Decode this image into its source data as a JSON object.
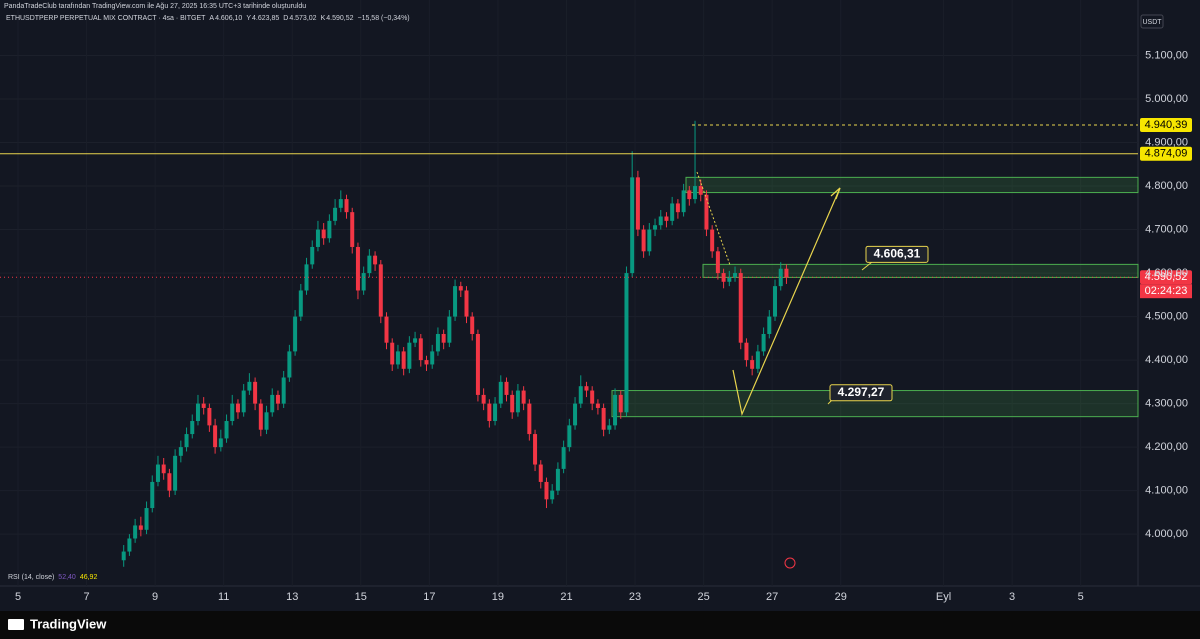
{
  "header": {
    "attribution": "PandaTradeClub tarafından TradingView.com ile Ağu 27, 2025 16:35 UTC+3 tarihinde oluşturuldu",
    "symbol": "ETHUSDTPERP PERPETUAL MIX CONTRACT · 4sa · BITGET",
    "ohlc": [
      {
        "key": "A",
        "value": "4.606,10"
      },
      {
        "key": "Y",
        "value": "4.623,85"
      },
      {
        "key": "D",
        "value": "4.573,02"
      },
      {
        "key": "K",
        "value": "4.590,52"
      }
    ],
    "change": "−15,58 (−0,34%)"
  },
  "chart_data": {
    "type": "candlestick",
    "currency": "USDT",
    "ylim": [
      3913,
      5200
    ],
    "yticks": [
      {
        "value": 4000,
        "label": "4.000,00"
      },
      {
        "value": 4100,
        "label": "4.100,00"
      },
      {
        "value": 4200,
        "label": "4.200,00"
      },
      {
        "value": 4300,
        "label": "4.300,00"
      },
      {
        "value": 4400,
        "label": "4.400,00"
      },
      {
        "value": 4500,
        "label": "4.500,00"
      },
      {
        "value": 4600,
        "label": "4.600,00"
      },
      {
        "value": 4700,
        "label": "4.700,00"
      },
      {
        "value": 4800,
        "label": "4.800,00"
      },
      {
        "value": 4900,
        "label": "4.900,00"
      },
      {
        "value": 5000,
        "label": "5.000,00"
      },
      {
        "value": 5100,
        "label": "5.100,00"
      }
    ],
    "x_labels": [
      "5",
      "7",
      "9",
      "11",
      "13",
      "15",
      "17",
      "19",
      "21",
      "23",
      "25",
      "27",
      "29",
      "Eyl",
      "3",
      "5"
    ],
    "candles": [
      [
        3940,
        3975,
        3925,
        3960
      ],
      [
        3960,
        4000,
        3950,
        3990
      ],
      [
        3990,
        4035,
        3980,
        4020
      ],
      [
        4020,
        4040,
        3995,
        4010
      ],
      [
        4010,
        4075,
        4000,
        4060
      ],
      [
        4060,
        4135,
        4050,
        4120
      ],
      [
        4120,
        4180,
        4110,
        4160
      ],
      [
        4160,
        4175,
        4125,
        4140
      ],
      [
        4140,
        4150,
        4085,
        4100
      ],
      [
        4100,
        4195,
        4090,
        4180
      ],
      [
        4180,
        4215,
        4165,
        4200
      ],
      [
        4200,
        4245,
        4190,
        4230
      ],
      [
        4230,
        4275,
        4220,
        4260
      ],
      [
        4260,
        4320,
        4250,
        4300
      ],
      [
        4300,
        4315,
        4275,
        4290
      ],
      [
        4290,
        4300,
        4235,
        4250
      ],
      [
        4250,
        4265,
        4185,
        4200
      ],
      [
        4200,
        4240,
        4190,
        4220
      ],
      [
        4220,
        4275,
        4210,
        4260
      ],
      [
        4260,
        4320,
        4250,
        4300
      ],
      [
        4300,
        4310,
        4265,
        4280
      ],
      [
        4280,
        4345,
        4270,
        4330
      ],
      [
        4330,
        4370,
        4320,
        4350
      ],
      [
        4350,
        4360,
        4285,
        4300
      ],
      [
        4300,
        4310,
        4225,
        4240
      ],
      [
        4240,
        4295,
        4230,
        4280
      ],
      [
        4280,
        4335,
        4270,
        4320
      ],
      [
        4320,
        4330,
        4285,
        4300
      ],
      [
        4300,
        4375,
        4290,
        4360
      ],
      [
        4360,
        4435,
        4350,
        4420
      ],
      [
        4420,
        4515,
        4410,
        4500
      ],
      [
        4500,
        4575,
        4490,
        4560
      ],
      [
        4560,
        4635,
        4550,
        4620
      ],
      [
        4620,
        4675,
        4610,
        4660
      ],
      [
        4660,
        4720,
        4650,
        4700
      ],
      [
        4700,
        4715,
        4665,
        4680
      ],
      [
        4680,
        4735,
        4670,
        4720
      ],
      [
        4720,
        4770,
        4710,
        4750
      ],
      [
        4750,
        4790,
        4740,
        4770
      ],
      [
        4770,
        4780,
        4725,
        4740
      ],
      [
        4740,
        4750,
        4645,
        4660
      ],
      [
        4660,
        4670,
        4540,
        4560
      ],
      [
        4560,
        4615,
        4550,
        4600
      ],
      [
        4600,
        4655,
        4590,
        4640
      ],
      [
        4640,
        4650,
        4605,
        4620
      ],
      [
        4620,
        4630,
        4485,
        4500
      ],
      [
        4500,
        4510,
        4425,
        4440
      ],
      [
        4440,
        4450,
        4375,
        4390
      ],
      [
        4390,
        4435,
        4380,
        4420
      ],
      [
        4420,
        4430,
        4365,
        4380
      ],
      [
        4380,
        4455,
        4370,
        4440
      ],
      [
        4440,
        4465,
        4430,
        4450
      ],
      [
        4450,
        4460,
        4385,
        4400
      ],
      [
        4400,
        4410,
        4375,
        4390
      ],
      [
        4390,
        4435,
        4380,
        4420
      ],
      [
        4420,
        4475,
        4410,
        4460
      ],
      [
        4460,
        4470,
        4425,
        4440
      ],
      [
        4440,
        4515,
        4430,
        4500
      ],
      [
        4500,
        4585,
        4490,
        4570
      ],
      [
        4570,
        4580,
        4545,
        4560
      ],
      [
        4560,
        4570,
        4485,
        4500
      ],
      [
        4500,
        4510,
        4445,
        4460
      ],
      [
        4460,
        4470,
        4305,
        4320
      ],
      [
        4320,
        4335,
        4285,
        4300
      ],
      [
        4300,
        4310,
        4245,
        4260
      ],
      [
        4260,
        4315,
        4250,
        4300
      ],
      [
        4300,
        4365,
        4290,
        4350
      ],
      [
        4350,
        4360,
        4305,
        4320
      ],
      [
        4320,
        4330,
        4265,
        4280
      ],
      [
        4280,
        4345,
        4270,
        4330
      ],
      [
        4330,
        4340,
        4285,
        4300
      ],
      [
        4300,
        4310,
        4215,
        4230
      ],
      [
        4230,
        4240,
        4145,
        4160
      ],
      [
        4160,
        4170,
        4105,
        4120
      ],
      [
        4120,
        4130,
        4060,
        4080
      ],
      [
        4080,
        4115,
        4070,
        4100
      ],
      [
        4100,
        4165,
        4090,
        4150
      ],
      [
        4150,
        4215,
        4140,
        4200
      ],
      [
        4200,
        4265,
        4190,
        4250
      ],
      [
        4250,
        4315,
        4240,
        4300
      ],
      [
        4300,
        4365,
        4290,
        4340
      ],
      [
        4340,
        4350,
        4315,
        4330
      ],
      [
        4330,
        4340,
        4285,
        4300
      ],
      [
        4300,
        4310,
        4275,
        4290
      ],
      [
        4290,
        4300,
        4225,
        4240
      ],
      [
        4240,
        4265,
        4230,
        4250
      ],
      [
        4250,
        4335,
        4240,
        4320
      ],
      [
        4320,
        4330,
        4265,
        4280
      ],
      [
        4280,
        4615,
        4270,
        4600
      ],
      [
        4600,
        4880,
        4590,
        4820
      ],
      [
        4820,
        4835,
        4685,
        4700
      ],
      [
        4700,
        4710,
        4635,
        4650
      ],
      [
        4650,
        4715,
        4640,
        4700
      ],
      [
        4700,
        4725,
        4685,
        4710
      ],
      [
        4710,
        4745,
        4700,
        4730
      ],
      [
        4730,
        4740,
        4705,
        4720
      ],
      [
        4720,
        4775,
        4710,
        4760
      ],
      [
        4760,
        4770,
        4725,
        4740
      ],
      [
        4740,
        4805,
        4730,
        4790
      ],
      [
        4790,
        4800,
        4755,
        4770
      ],
      [
        4770,
        4950,
        4760,
        4800
      ],
      [
        4800,
        4815,
        4765,
        4780
      ],
      [
        4780,
        4790,
        4685,
        4700
      ],
      [
        4700,
        4710,
        4635,
        4650
      ],
      [
        4650,
        4660,
        4585,
        4600
      ],
      [
        4600,
        4610,
        4565,
        4580
      ],
      [
        4580,
        4605,
        4570,
        4590
      ],
      [
        4590,
        4615,
        4580,
        4600
      ],
      [
        4600,
        4610,
        4425,
        4440
      ],
      [
        4440,
        4450,
        4385,
        4400
      ],
      [
        4400,
        4410,
        4365,
        4380
      ],
      [
        4380,
        4435,
        4370,
        4420
      ],
      [
        4420,
        4475,
        4410,
        4460
      ],
      [
        4460,
        4515,
        4450,
        4500
      ],
      [
        4500,
        4585,
        4490,
        4570
      ],
      [
        4570,
        4625,
        4560,
        4610
      ],
      [
        4610,
        4620,
        4575,
        4590.52
      ]
    ],
    "up_color": "#089981",
    "down_color": "#f23645",
    "zones": [
      [
        4785,
        4820
      ],
      [
        4590,
        4620
      ],
      [
        4270,
        4330
      ]
    ],
    "resistance": {
      "value": 4874.09,
      "label": "4.874,09"
    },
    "high": {
      "value": 4940.39,
      "label": "4.940,39"
    },
    "last": {
      "value": 4590.52,
      "label": "4.590,52",
      "countdown": "02:24:23"
    },
    "annotations": [
      {
        "value": 4606.31,
        "label": "4.606,31"
      },
      {
        "value": 4297.27,
        "label": "4.297,27"
      }
    ],
    "rsi": {
      "label": "RSI (14, close)",
      "values": [
        "52,40",
        "46,92"
      ]
    }
  },
  "footer": {
    "brand": "TradingView"
  }
}
